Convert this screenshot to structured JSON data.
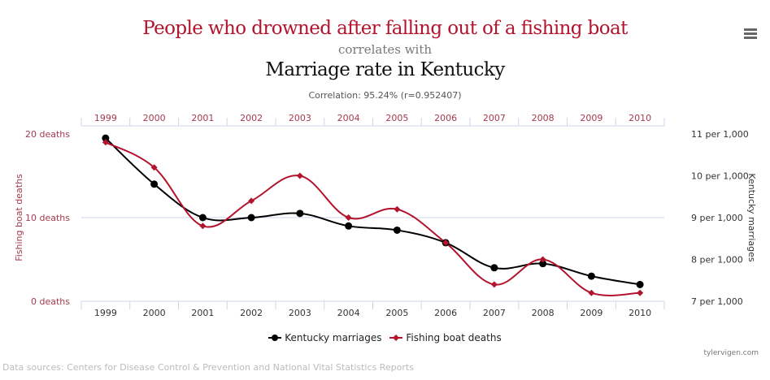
{
  "title": {
    "line1": "People who drowned after falling out of a fishing boat",
    "line2": "correlates with",
    "line3": "Marriage rate in Kentucky",
    "correlation": "Correlation: 95.24% (r=0.952407)"
  },
  "menu_icon": "hamburger-menu-icon",
  "credit": "tylervigen.com",
  "sources": "Data sources: Centers for Disease Control & Prevention and National Vital Statistics Reports",
  "colors": {
    "deaths": "#b3142d",
    "marriages": "#000000",
    "grid": "#ccd6eb",
    "left_axis_text": "#a53a4e",
    "right_axis_text": "#333333"
  },
  "chart_data": {
    "type": "line",
    "categories": [
      "1999",
      "2000",
      "2001",
      "2002",
      "2003",
      "2004",
      "2005",
      "2006",
      "2007",
      "2008",
      "2009",
      "2010"
    ],
    "series": [
      {
        "name": "Kentucky marriages",
        "axis": "right",
        "marker": "circle",
        "values": [
          10.9,
          9.8,
          9.0,
          9.0,
          9.1,
          8.8,
          8.7,
          8.4,
          7.8,
          7.9,
          7.6,
          7.4
        ]
      },
      {
        "name": "Fishing boat deaths",
        "axis": "left",
        "marker": "diamond",
        "values": [
          19,
          16,
          9,
          12,
          15,
          10,
          11,
          7,
          2,
          5,
          1,
          1
        ]
      }
    ],
    "left_axis": {
      "label": "Fishing boat deaths",
      "ylim": [
        0,
        20
      ],
      "ticks": [
        "0 deaths",
        "10 deaths",
        "20 deaths"
      ],
      "tick_values": [
        0,
        10,
        20
      ]
    },
    "right_axis": {
      "label": "Kentucky marriages",
      "ylim": [
        7,
        11
      ],
      "ticks": [
        "7 per 1,000",
        "8 per 1,000",
        "9 per 1,000",
        "10 per 1,000",
        "11 per 1,000"
      ],
      "tick_values": [
        7,
        8,
        9,
        10,
        11
      ]
    },
    "legend": {
      "position": "bottom-center",
      "entries": [
        "Kentucky marriages",
        "Fishing boat deaths"
      ]
    },
    "grid": true
  }
}
